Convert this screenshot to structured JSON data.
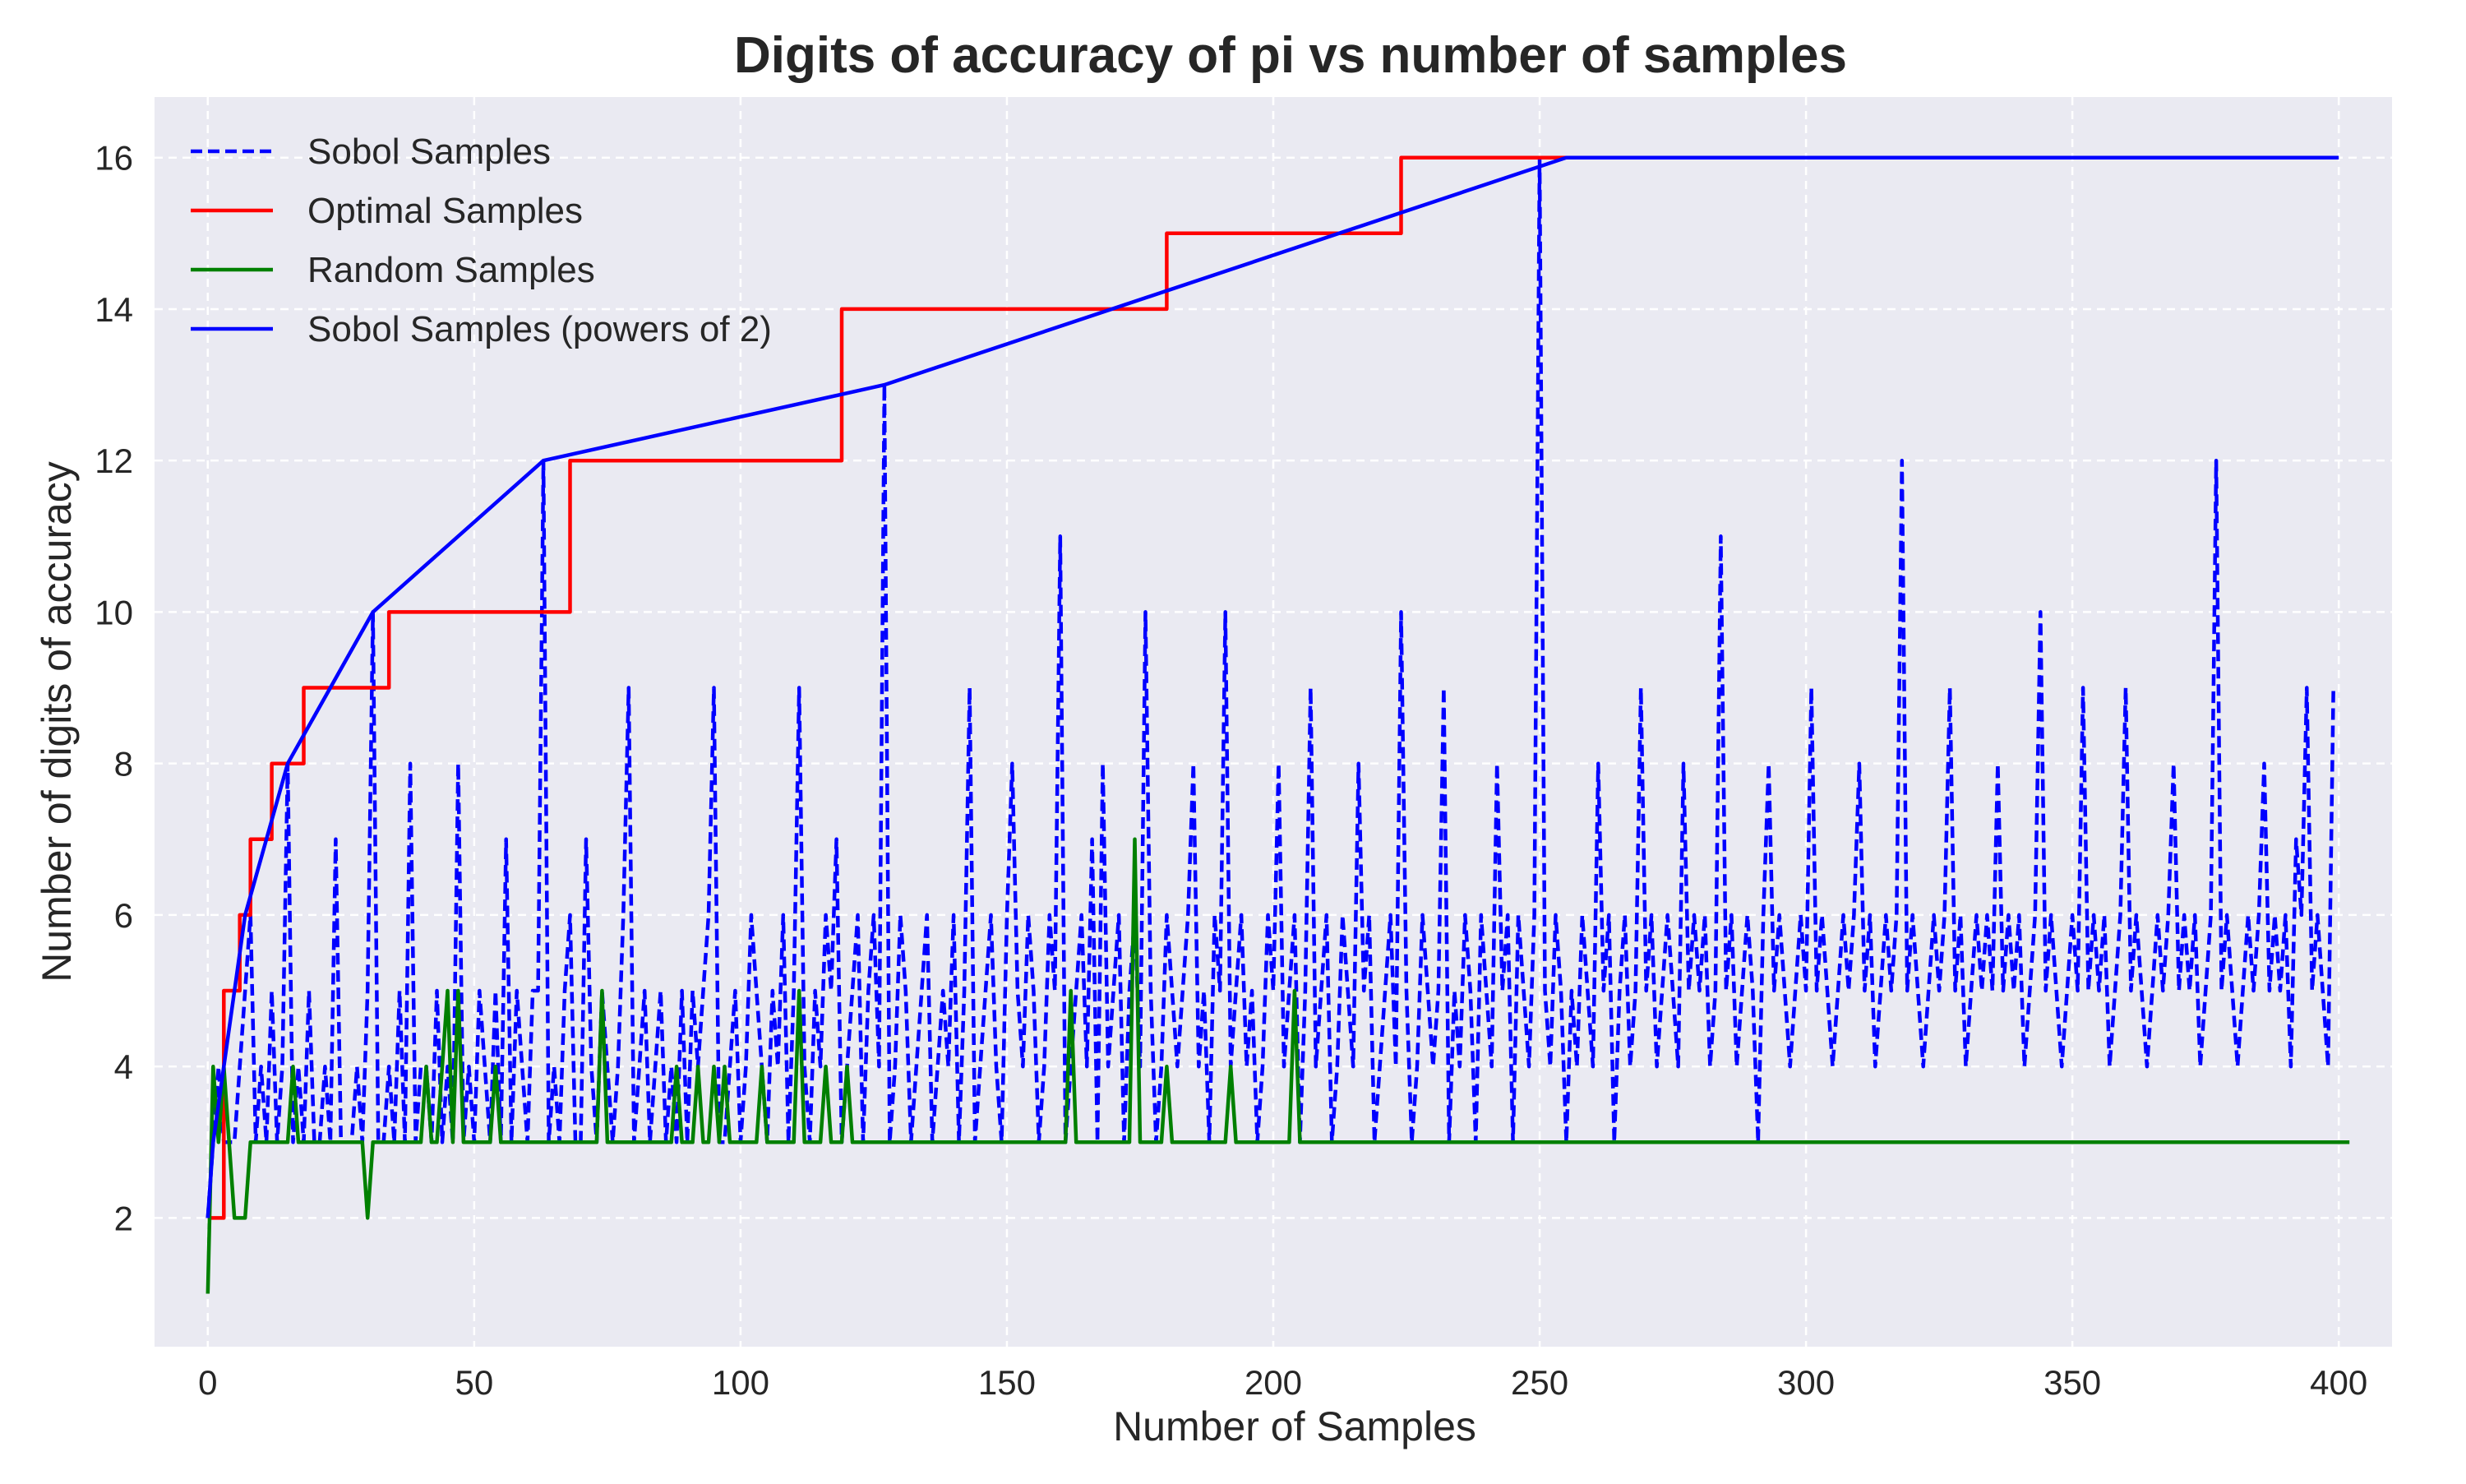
{
  "chart_data": {
    "type": "line",
    "title": "Digits of accuracy of pi vs number of samples",
    "xlabel": "Number of Samples",
    "ylabel": "Number of digits of accuracy",
    "xlim": [
      -10,
      410
    ],
    "ylim": [
      0.3,
      16.8
    ],
    "xticks": [
      0,
      50,
      100,
      150,
      200,
      250,
      300,
      350,
      400
    ],
    "yticks": [
      2,
      4,
      6,
      8,
      10,
      12,
      14,
      16
    ],
    "grid": true,
    "legend_position": "top-left",
    "series": [
      {
        "name": "Sobol Samples",
        "style": "dashed",
        "color": "#0000ff",
        "x_start": 0,
        "values": [
          2,
          3,
          4,
          3,
          3,
          3,
          4,
          5,
          6,
          3,
          4,
          3,
          5,
          3,
          4,
          8,
          3,
          4,
          3,
          5,
          3,
          3,
          4,
          3,
          7,
          3,
          3,
          3,
          4,
          3,
          5,
          10,
          3,
          3,
          4,
          3,
          5,
          3,
          8,
          3,
          4,
          4,
          3,
          5,
          3,
          4,
          3,
          8,
          3,
          4,
          3,
          5,
          4,
          3,
          5,
          3,
          7,
          3,
          5,
          4,
          3,
          5,
          5,
          12,
          3,
          4,
          3,
          5,
          6,
          3,
          3,
          7,
          4,
          3,
          5,
          4,
          3,
          4,
          6,
          9,
          3,
          4,
          5,
          3,
          4,
          5,
          3,
          4,
          3,
          5,
          3,
          5,
          4,
          5,
          6,
          9,
          3,
          3,
          4,
          5,
          3,
          4,
          6,
          5,
          4,
          3,
          5,
          4,
          6,
          3,
          5,
          9,
          4,
          3,
          5,
          4,
          6,
          5,
          7,
          3,
          4,
          5,
          6,
          3,
          5,
          6,
          4,
          13,
          3,
          4,
          6,
          5,
          3,
          4,
          5,
          6,
          3,
          4,
          5,
          4,
          6,
          3,
          5,
          9,
          3,
          4,
          5,
          6,
          4,
          3,
          6,
          8,
          5,
          4,
          6,
          5,
          3,
          4,
          6,
          5,
          11,
          3,
          4,
          5,
          6,
          4,
          7,
          3,
          8,
          4,
          5,
          6,
          3,
          5,
          6,
          4,
          10,
          5,
          3,
          4,
          6,
          5,
          4,
          5,
          6,
          8,
          4,
          5,
          3,
          6,
          5,
          10,
          4,
          5,
          6,
          4,
          5,
          3,
          4,
          6,
          5,
          8,
          4,
          5,
          6,
          3,
          5,
          9,
          4,
          5,
          6,
          3,
          4,
          6,
          5,
          4,
          8,
          5,
          6,
          3,
          4,
          5,
          6,
          4,
          10,
          5,
          3,
          4,
          6,
          5,
          4,
          5,
          9,
          3,
          5,
          4,
          6,
          5,
          3,
          6,
          5,
          4,
          8,
          5,
          6,
          3,
          6,
          5,
          4,
          6,
          16,
          5,
          4,
          6,
          5,
          3,
          5,
          4,
          6,
          5,
          4,
          8,
          5,
          6,
          3,
          5,
          6,
          4,
          5,
          9,
          5,
          6,
          4,
          5,
          6,
          5,
          4,
          8,
          5,
          6,
          5,
          6,
          4,
          5,
          11,
          5,
          6,
          4,
          5,
          6,
          5,
          3,
          6,
          8,
          5,
          6,
          5,
          4,
          5,
          6,
          5,
          9,
          5,
          6,
          5,
          4,
          5,
          6,
          5,
          6,
          8,
          5,
          6,
          4,
          5,
          6,
          5,
          6,
          12,
          5,
          6,
          5,
          4,
          5,
          6,
          5,
          6,
          9,
          5,
          6,
          4,
          5,
          6,
          5,
          6,
          5,
          8,
          5,
          6,
          5,
          6,
          4,
          5,
          6,
          10,
          5,
          6,
          5,
          4,
          5,
          6,
          5,
          9,
          5,
          6,
          5,
          6,
          4,
          5,
          6,
          9,
          5,
          6,
          5,
          4,
          5,
          6,
          5,
          6,
          8,
          5,
          6,
          5,
          6,
          4,
          5,
          6,
          12,
          5,
          6,
          5,
          4,
          5,
          6,
          5,
          6,
          8,
          5,
          6,
          5,
          6,
          4,
          7,
          6,
          9,
          5,
          6,
          5,
          4,
          9
        ]
      },
      {
        "name": "Optimal Samples",
        "style": "solid",
        "color": "#ff0000",
        "x": [
          0,
          3,
          3,
          6,
          6,
          8,
          8,
          12,
          12,
          18,
          18,
          34,
          34,
          68,
          68,
          119,
          119,
          180,
          180,
          224,
          224,
          255
        ],
        "y": [
          2,
          2,
          5,
          5,
          6,
          6,
          7,
          7,
          8,
          8,
          9,
          9,
          10,
          10,
          12,
          12,
          14,
          14,
          15,
          15,
          16,
          16
        ]
      },
      {
        "name": "Random Samples",
        "style": "solid",
        "color": "#008000",
        "x_start": 0,
        "values": [
          1,
          4,
          3,
          4,
          3,
          2,
          2,
          2,
          3,
          3,
          3,
          3,
          3,
          3,
          3,
          3,
          4,
          3,
          3,
          3,
          3,
          3,
          3,
          3,
          3,
          3,
          3,
          3,
          3,
          3,
          2,
          3,
          3,
          3,
          3,
          3,
          3,
          3,
          3,
          3,
          3,
          4,
          3,
          3,
          4,
          5,
          3,
          5,
          3,
          3,
          3,
          3,
          3,
          3,
          4,
          3,
          3,
          3,
          3,
          3,
          3,
          3,
          3,
          3,
          3,
          3,
          3,
          3,
          3,
          3,
          3,
          3,
          3,
          3,
          5,
          3,
          3,
          3,
          3,
          3,
          3,
          3,
          3,
          3,
          3,
          3,
          3,
          3,
          4,
          3,
          3,
          3,
          4,
          3,
          3,
          4,
          3,
          4,
          3,
          3,
          3,
          3,
          3,
          3,
          4,
          3,
          3,
          3,
          3,
          3,
          3,
          5,
          3,
          3,
          3,
          3,
          4,
          3,
          3,
          3,
          4,
          3,
          3,
          3,
          3,
          3,
          3,
          3,
          3,
          3,
          3,
          3,
          3,
          3,
          3,
          3,
          3,
          3,
          3,
          3,
          3,
          3,
          3,
          3,
          3,
          3,
          3,
          3,
          3,
          3,
          3,
          3,
          3,
          3,
          3,
          3,
          3,
          3,
          3,
          3,
          3,
          3,
          5,
          3,
          3,
          3,
          3,
          3,
          3,
          3,
          3,
          3,
          3,
          3,
          7,
          3,
          3,
          3,
          3,
          3,
          4,
          3,
          3,
          3,
          3,
          3,
          3,
          3,
          3,
          3,
          3,
          3,
          4,
          3,
          3,
          3,
          3,
          3,
          3,
          3,
          3,
          3,
          3,
          3,
          5,
          3,
          3,
          3,
          3,
          3,
          3,
          3,
          3,
          3,
          3,
          3,
          3,
          3,
          3,
          3,
          3,
          3,
          3,
          3,
          3,
          3,
          3,
          3,
          3,
          3,
          3,
          3,
          3,
          3,
          3,
          3,
          3,
          3,
          3,
          3,
          3,
          3,
          3,
          3,
          3,
          3,
          3,
          3,
          3,
          3,
          3,
          3,
          3,
          3,
          3,
          3,
          3,
          3,
          3,
          3,
          3,
          3,
          3,
          3,
          3,
          3,
          3,
          3,
          3,
          3,
          3,
          3,
          3,
          3,
          3,
          3,
          3,
          3,
          3,
          3,
          3,
          3,
          3,
          3,
          3,
          3,
          3,
          3,
          3,
          3,
          3,
          3,
          3,
          3,
          3,
          3,
          3,
          3,
          3,
          3,
          3,
          3,
          3,
          3,
          3,
          3,
          3,
          3,
          3,
          3,
          3,
          3,
          3,
          3,
          3,
          3,
          3,
          3,
          3,
          3,
          3,
          3,
          3,
          3,
          3,
          3,
          3,
          3,
          3,
          3,
          3,
          3,
          3,
          3,
          3,
          3,
          3,
          3,
          3,
          3,
          3,
          3,
          3,
          3,
          3,
          3,
          3,
          3,
          3,
          3,
          3,
          3,
          3,
          3,
          3,
          3,
          3,
          3,
          3,
          3,
          3,
          3,
          3,
          3,
          3,
          3,
          3,
          3,
          3,
          3,
          3,
          3,
          3,
          3,
          3,
          3,
          3,
          3,
          3,
          3,
          3,
          3,
          3,
          3,
          3,
          3,
          3,
          3,
          3,
          3,
          3,
          3,
          3,
          3,
          3,
          3,
          3,
          3,
          3,
          3,
          3,
          3,
          3
        ]
      },
      {
        "name": "Sobol Samples (powers of 2)",
        "style": "solid",
        "color": "#0000ff",
        "x": [
          0,
          1,
          3,
          7,
          15,
          31,
          63,
          127,
          255,
          400
        ],
        "y": [
          2,
          3,
          4,
          6,
          8,
          10,
          12,
          13,
          16,
          16
        ]
      }
    ]
  }
}
